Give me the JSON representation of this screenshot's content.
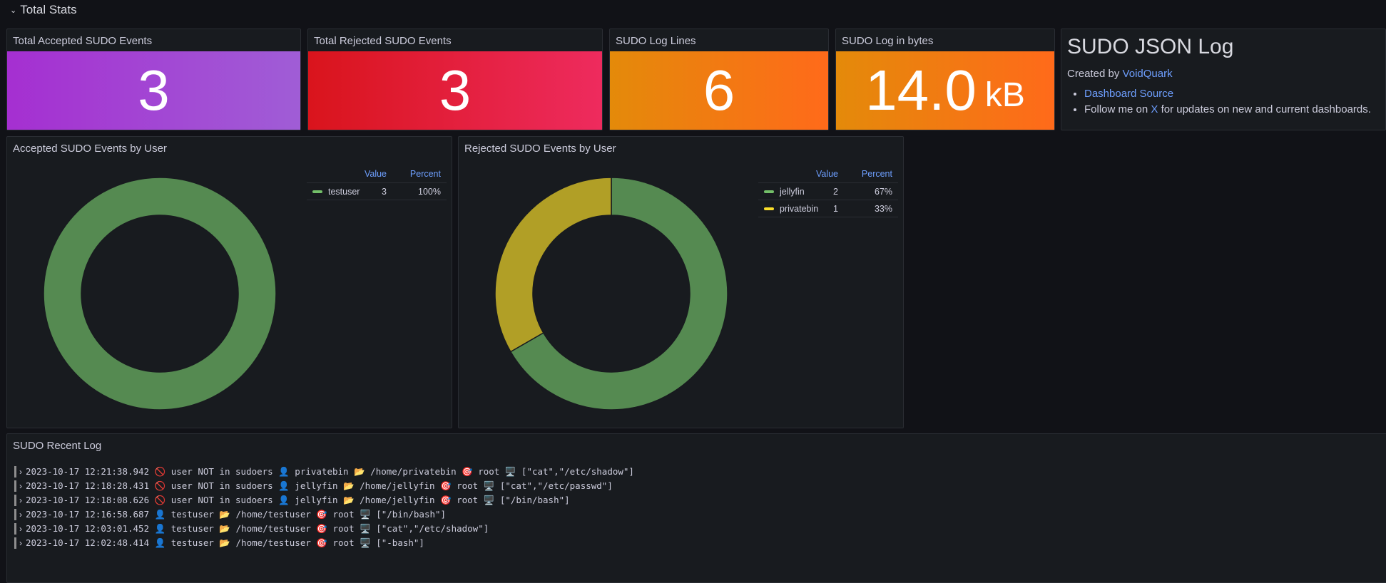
{
  "row_title": "Total Stats",
  "stats": [
    {
      "title": "Total Accepted SUDO Events",
      "value": 3
    },
    {
      "title": "Total Rejected SUDO Events",
      "value": 3
    },
    {
      "title": "SUDO Log Lines",
      "value": 6
    },
    {
      "title": "SUDO Log in bytes",
      "value": "14.0",
      "unit": "kB"
    }
  ],
  "text_panel": {
    "title": "SUDO JSON Log",
    "created_by": "Created by",
    "author": "VoidQuark",
    "items": [
      {
        "link": "Dashboard Source"
      },
      {
        "before": "Follow me on",
        "link": "X",
        "after": "for updates on new and current dashboards."
      }
    ]
  },
  "pies": [
    {
      "title": "Accepted SUDO Events by User",
      "value_header": "Value",
      "percent_header": "Percent",
      "series": [
        {
          "name": "testuser",
          "color": "#73bf69",
          "value": 3,
          "percent": "100%"
        }
      ]
    },
    {
      "title": "Rejected SUDO Events by User",
      "value_header": "Value",
      "percent_header": "Percent",
      "series": [
        {
          "name": "jellyfin",
          "color": "#73bf69",
          "value": 2,
          "percent": "67%"
        },
        {
          "name": "privatebin",
          "color": "#fade2a",
          "value": 1,
          "percent": "33%"
        }
      ]
    }
  ],
  "log": {
    "title": "SUDO Recent Log",
    "lines": [
      "2023-10-17 12:21:38.942 🚫 user NOT in sudoers 👤 privatebin 📂 /home/privatebin 🎯 root 🖥️ [\"cat\",\"/etc/shadow\"]",
      "2023-10-17 12:18:28.431 🚫 user NOT in sudoers 👤 jellyfin 📂 /home/jellyfin 🎯 root 🖥️ [\"cat\",\"/etc/passwd\"]",
      "2023-10-17 12:18:08.626 🚫 user NOT in sudoers 👤 jellyfin 📂 /home/jellyfin 🎯 root 🖥️ [\"/bin/bash\"]",
      "2023-10-17 12:16:58.687 👤 testuser 📂 /home/testuser 🎯 root 🖥️ [\"/bin/bash\"]",
      "2023-10-17 12:03:01.452 👤 testuser 📂 /home/testuser 🎯 root 🖥️ [\"cat\",\"/etc/shadow\"]",
      "2023-10-17 12:02:48.414 👤 testuser 📂 /home/testuser 🎯 root 🖥️ [\"-bash\"]"
    ]
  }
}
